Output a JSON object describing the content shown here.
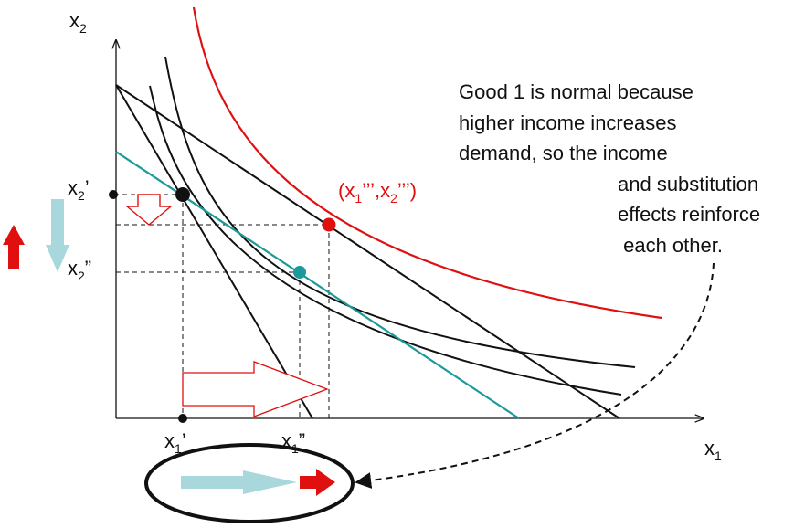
{
  "axes": {
    "y_label_base": "x",
    "y_label_sub": "2",
    "x_label_base": "x",
    "x_label_sub": "1"
  },
  "ticks": {
    "x2_prime": {
      "base": "x",
      "sub": "2",
      "mark": "’"
    },
    "x2_double": {
      "base": "x",
      "sub": "2",
      "mark": "”"
    },
    "x1_prime": {
      "base": "x",
      "sub": "1",
      "mark": "’"
    },
    "x1_double": {
      "base": "x",
      "sub": "1",
      "mark": "”"
    }
  },
  "point_label": {
    "open": "(x",
    "sub1": "1",
    "mark1": "’’’",
    "sep": ",x",
    "sub2": "2",
    "mark2": "’’’",
    "close": ")"
  },
  "note_lines": [
    "Good 1 is normal because",
    "higher income increases",
    "demand, so the income",
    "and substitution",
    "effects reinforce",
    " each other."
  ],
  "colors": {
    "budget_new": "#111111",
    "compensated_budget": "#1a9a9a",
    "indifference_high": "#e01010",
    "indifference_low": "#111111",
    "income_arrow": "#e01010",
    "substitution_arrow": "#a8d8dc"
  },
  "icons": {
    "up_arrow": "red-up-arrow-icon",
    "down_arrow": "lightblue-down-arrow-icon",
    "callout": "dashed-curved-arrow-icon"
  }
}
